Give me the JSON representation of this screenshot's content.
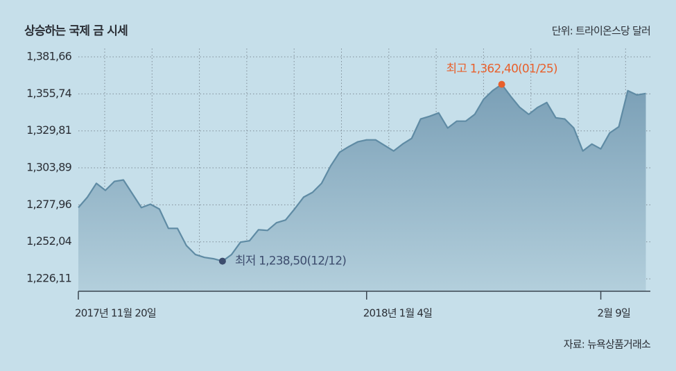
{
  "chart_data": {
    "type": "area",
    "title": "상승하는 국제 금 시세",
    "unit": "단위: 트라이온스당 달러",
    "source": "자료: 뉴욕상품거래소",
    "categories": [
      "2017년 11월 20일",
      null,
      null,
      null,
      null,
      null,
      null,
      null,
      null,
      null,
      null,
      null,
      null,
      null,
      null,
      null,
      null,
      null,
      null,
      null,
      null,
      null,
      null,
      null,
      null,
      null,
      null,
      null,
      null,
      null,
      null,
      null,
      "2018년 1월 4일",
      null,
      null,
      null,
      null,
      null,
      null,
      null,
      null,
      null,
      null,
      null,
      null,
      null,
      null,
      null,
      null,
      null,
      null,
      null,
      null,
      null,
      null,
      null,
      null,
      null,
      "2월 9일",
      null,
      null,
      null,
      null,
      null
    ],
    "values": [
      1276.0,
      1283.3,
      1293.0,
      1288.1,
      1294.4,
      1295.4,
      1285.7,
      1276.0,
      1278.4,
      1275.0,
      1261.5,
      1261.5,
      1249.4,
      1243.1,
      1241.1,
      1240.2,
      1238.5,
      1243.1,
      1251.8,
      1252.8,
      1260.5,
      1260.0,
      1265.4,
      1267.3,
      1275.0,
      1283.3,
      1286.7,
      1293.0,
      1305.1,
      1314.8,
      1318.7,
      1322.1,
      1323.5,
      1323.5,
      1319.6,
      1315.7,
      1320.6,
      1324.5,
      1338.1,
      1340.0,
      1342.4,
      1331.8,
      1336.6,
      1336.6,
      1341.4,
      1352.0,
      1358.0,
      1362.4,
      1354.0,
      1346.3,
      1341.4,
      1346.3,
      1349.7,
      1339.0,
      1338.1,
      1331.8,
      1315.7,
      1320.6,
      1317.2,
      1328.4,
      1332.7,
      1358.0,
      1355.0,
      1356.0
    ],
    "color": "#5f8ba4",
    "high_label": "최고 1,362,40(01/25)",
    "high_color": "#e8602c",
    "low_label": "최저 1,238,50(12/12)",
    "low_color": "#3d4d6e",
    "ylim": [
      1217.4,
      1387.5
    ],
    "yticks": [
      {
        "value": 1226.11,
        "label": "1,226,11"
      },
      {
        "value": 1252.04,
        "label": "1,252,04"
      },
      {
        "value": 1277.96,
        "label": "1,277,96"
      },
      {
        "value": 1303.89,
        "label": "1,303,89"
      },
      {
        "value": 1329.81,
        "label": "1,329,81"
      },
      {
        "value": 1355.74,
        "label": "1,355,74"
      },
      {
        "value": 1381.66,
        "label": "1,381,66"
      }
    ],
    "grid": true
  }
}
